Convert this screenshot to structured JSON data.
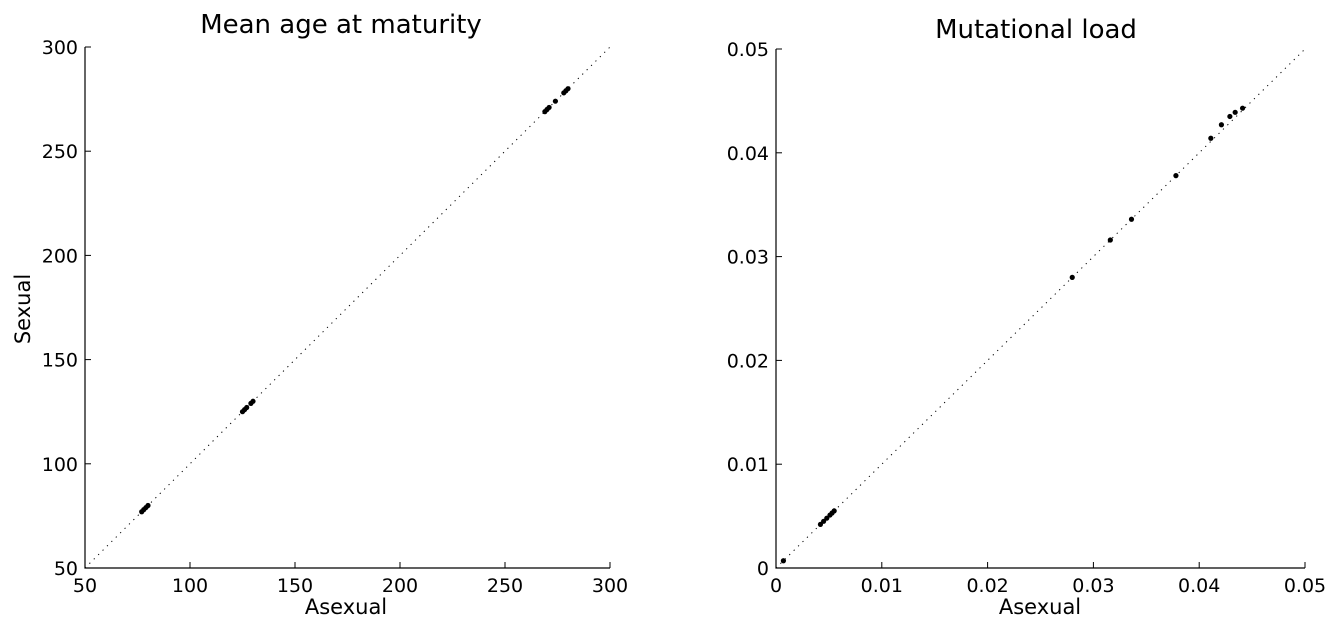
{
  "chart_data": [
    {
      "type": "scatter",
      "title": "Mean age at maturity",
      "xlabel": "Asexual",
      "ylabel": "Sexual",
      "xlim": [
        50,
        300
      ],
      "ylim": [
        50,
        300
      ],
      "xticks": [
        "50",
        "100",
        "150",
        "200",
        "250",
        "300"
      ],
      "yticks": [
        "50",
        "100",
        "150",
        "200",
        "250",
        "300"
      ],
      "reference_line": "y = x (dotted)",
      "grid": false,
      "points": {
        "x": [
          77,
          78,
          79,
          80,
          125,
          126,
          127,
          129,
          130,
          269,
          270,
          271,
          274,
          278,
          279,
          280
        ],
        "y": [
          77,
          78,
          79,
          80,
          125,
          126,
          127,
          129,
          130,
          269,
          270,
          271,
          274,
          278,
          279,
          280
        ]
      }
    },
    {
      "type": "scatter",
      "title": "Mutational load",
      "xlabel": "Asexual",
      "ylabel": "",
      "xlim": [
        0,
        0.05
      ],
      "ylim": [
        0,
        0.05
      ],
      "xticks": [
        "0",
        "0.01",
        "0.02",
        "0.03",
        "0.04",
        "0.05"
      ],
      "yticks": [
        "0",
        "0.01",
        "0.02",
        "0.03",
        "0.04",
        "0.05"
      ],
      "reference_line": "y = x (dotted)",
      "grid": false,
      "points": {
        "x": [
          0.0007,
          0.0042,
          0.0045,
          0.0048,
          0.0051,
          0.0053,
          0.0055,
          0.028,
          0.0316,
          0.0336,
          0.0378,
          0.0411,
          0.0421,
          0.0429,
          0.0434,
          0.0441
        ],
        "y": [
          0.0007,
          0.0042,
          0.0045,
          0.0048,
          0.0051,
          0.0053,
          0.0055,
          0.028,
          0.0316,
          0.0336,
          0.0378,
          0.0414,
          0.0427,
          0.0435,
          0.0439,
          0.0443
        ]
      }
    }
  ]
}
